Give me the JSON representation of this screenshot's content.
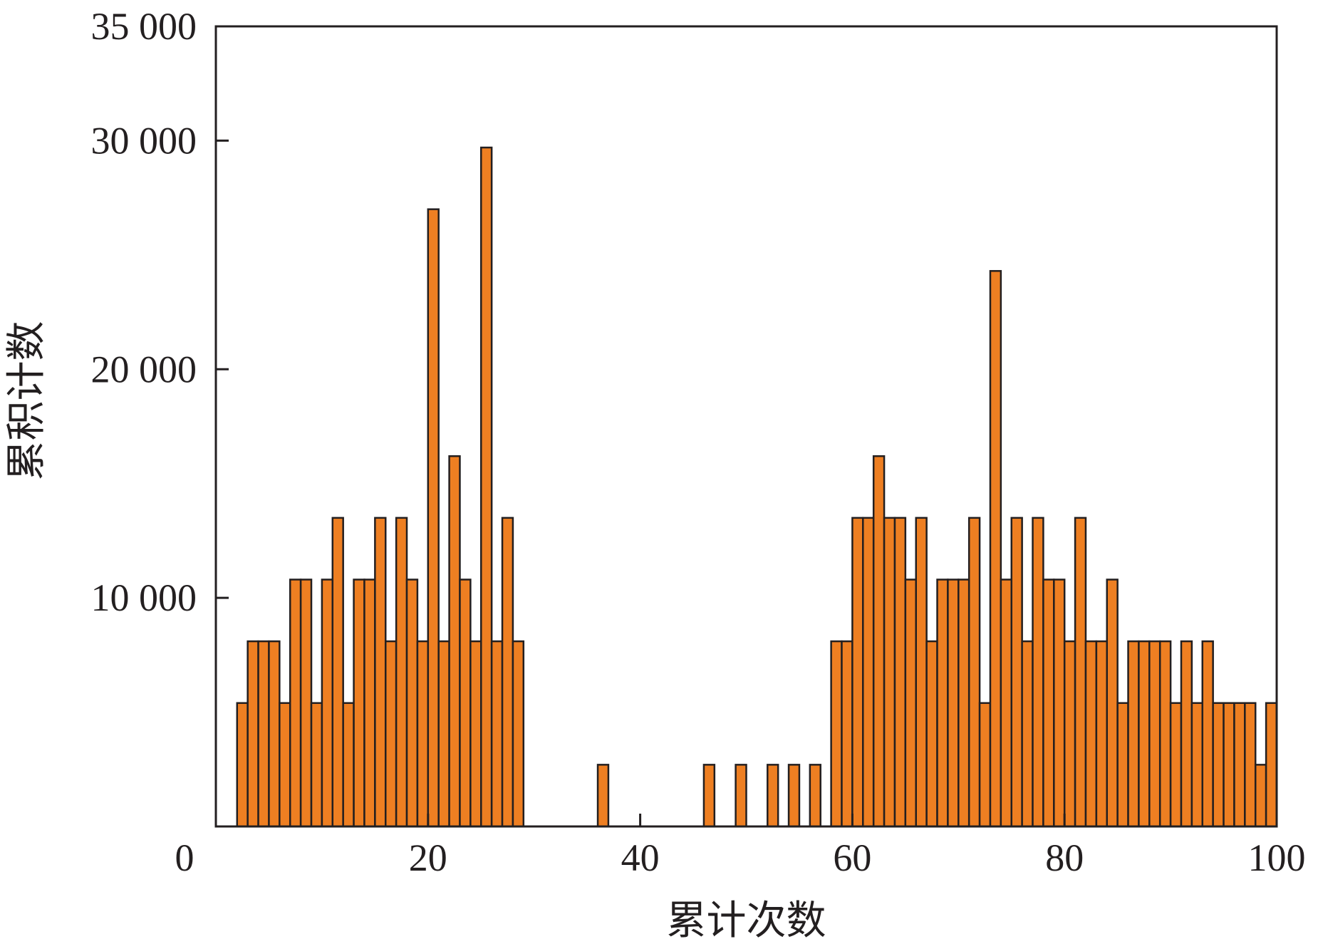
{
  "chart_data": {
    "type": "bar",
    "title": "",
    "xlabel": "累计次数",
    "ylabel": "累积计数",
    "xlim": [
      0,
      100
    ],
    "ylim": [
      0,
      35000
    ],
    "x_ticks": [
      0,
      20,
      40,
      60,
      80,
      100
    ],
    "x_tick_labels": [
      "0",
      "20",
      "40",
      "60",
      "80",
      "100"
    ],
    "y_ticks": [
      10000,
      20000,
      30000,
      35000
    ],
    "y_tick_labels": [
      "10 000",
      "20 000",
      "30 000",
      "35 000"
    ],
    "bar_color": "#ee7f22",
    "edge_color": "#231f20",
    "grid": false,
    "legend": "none",
    "x": [
      2,
      3,
      4,
      5,
      6,
      7,
      8,
      9,
      10,
      11,
      12,
      13,
      14,
      15,
      16,
      17,
      18,
      19,
      20,
      21,
      22,
      23,
      24,
      25,
      26,
      27,
      28,
      36,
      46,
      49,
      52,
      54,
      56,
      58,
      59,
      60,
      61,
      62,
      63,
      64,
      65,
      66,
      67,
      68,
      69,
      70,
      71,
      72,
      73,
      74,
      75,
      76,
      77,
      78,
      79,
      80,
      81,
      82,
      83,
      84,
      85,
      86,
      87,
      88,
      89,
      90,
      91,
      92,
      93,
      94,
      95,
      96,
      97,
      98,
      99
    ],
    "values": [
      5400,
      8100,
      8100,
      8100,
      5400,
      10800,
      10800,
      5400,
      10800,
      13500,
      5400,
      10800,
      10800,
      13500,
      8100,
      13500,
      10800,
      8100,
      27000,
      8100,
      16200,
      10800,
      8100,
      29700,
      8100,
      13500,
      8100,
      2700,
      2700,
      2700,
      2700,
      2700,
      2700,
      8100,
      8100,
      13500,
      13500,
      16200,
      13500,
      13500,
      10800,
      13500,
      8100,
      10800,
      10800,
      10800,
      13500,
      5400,
      24300,
      10800,
      13500,
      8100,
      13500,
      10800,
      10800,
      8100,
      13500,
      8100,
      8100,
      10800,
      5400,
      8100,
      8100,
      8100,
      8100,
      5400,
      8100,
      5400,
      8100,
      5400,
      5400,
      5400,
      5400,
      2700,
      5400
    ]
  }
}
